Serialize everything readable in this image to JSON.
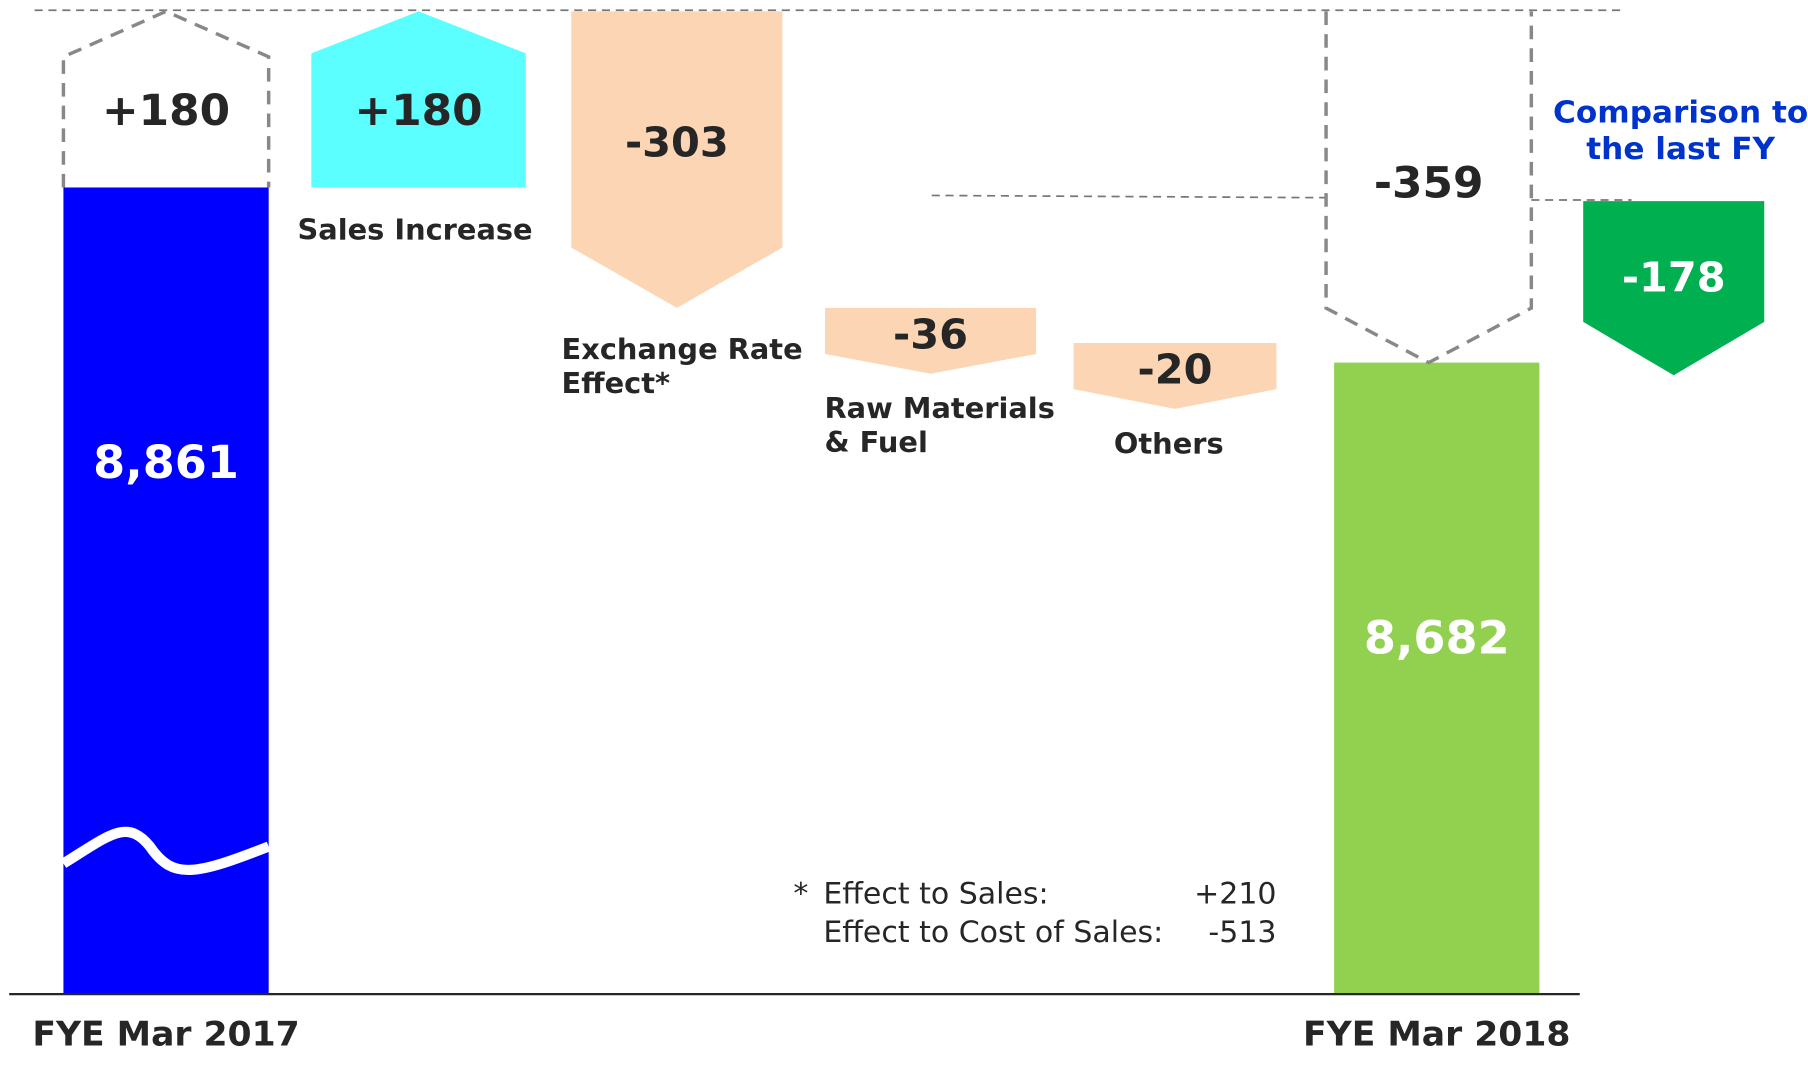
{
  "chart_data": {
    "type": "waterfall",
    "categories": [
      "FYE Mar 2017",
      "Sales Increase",
      "Exchange Rate Effect*",
      "Raw Materials & Fuel",
      "Others",
      "FYE Mar 2018"
    ],
    "values": [
      8861,
      180,
      -303,
      -36,
      -20,
      8682
    ],
    "value_labels": [
      "8,861",
      "+180",
      "-303",
      "-36",
      "-20",
      "8,682"
    ],
    "totals": [
      true,
      false,
      false,
      false,
      false,
      true
    ],
    "colors": [
      "#0000ff",
      "#5cffff",
      "#fcd5b5",
      "#fcd5b5",
      "#fcd5b5",
      "#92d050"
    ],
    "increase_marker": {
      "value": 180,
      "label": "+180"
    },
    "subtotal": {
      "value": -359
    },
    "comparison": {
      "label": "Comparison to the last FY",
      "value": -178,
      "color": "#00b050"
    },
    "note": {
      "marker": "*",
      "items": [
        {
          "label": "Effect to Sales:",
          "value": 210,
          "value_label": "+210"
        },
        {
          "label": "Effect to Cost of Sales:",
          "value": -513
        }
      ]
    }
  }
}
